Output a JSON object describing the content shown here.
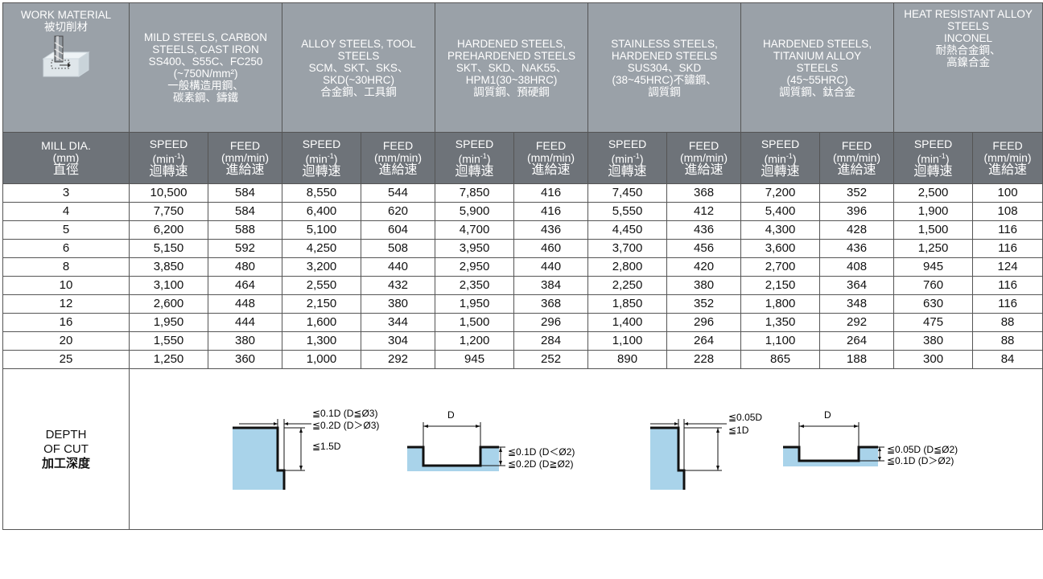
{
  "header": {
    "first_col": {
      "line1": "WORK MATERIAL",
      "line2": "被切削材",
      "icon": "end-mill-cutting-workpiece-icon"
    },
    "materials": [
      {
        "lines": [
          "MILD STEELS, CARBON",
          "STEELS, CAST IRON",
          "SS400、S55C、FC250",
          "(~750N/mm²)",
          "一般構造用鋼、",
          "碳素鋼、鑄鐵"
        ]
      },
      {
        "lines": [
          "ALLOY STEELS, TOOL",
          "STEELS",
          "SCM、SKT、SKS、",
          "SKD(~30HRC)",
          "合金鋼、工具鋼"
        ]
      },
      {
        "lines": [
          "HARDENED STEELS,",
          "PREHARDENED STEELS",
          "SKT、SKD、NAK55、",
          "HPM1(30~38HRC)",
          "調質鋼、預硬鋼"
        ]
      },
      {
        "lines": [
          "STAINLESS STEELS,",
          "HARDENED STEELS",
          "SUS304、SKD",
          "(38~45HRC)不鏽鋼、",
          "調質鋼"
        ]
      },
      {
        "lines": [
          "HARDENED STEELS,",
          "TITANIUM ALLOY",
          "STEELS",
          "(45~55HRC)",
          "調質鋼、鈦合金"
        ]
      },
      {
        "lines": [
          "HEAT RESISTANT ALLOY",
          "STEELS",
          "INCONEL",
          "耐熱合金鋼、",
          "高鎳合金"
        ]
      }
    ]
  },
  "subheader": {
    "mill_dia": {
      "line1": "MILL DIA.",
      "line2": "(mm)",
      "line3": "直徑"
    },
    "speed": {
      "line1": "SPEED",
      "line2_base": "(min",
      "line2_sup": "-1",
      "line2_end": ")",
      "line3": "迴轉速"
    },
    "feed": {
      "line1": "FEED",
      "line2": "(mm/min)",
      "line3": "進給速"
    }
  },
  "rows": [
    [
      "3",
      "10,500",
      "584",
      "8,550",
      "544",
      "7,850",
      "416",
      "7,450",
      "368",
      "7,200",
      "352",
      "2,500",
      "100"
    ],
    [
      "4",
      "7,750",
      "584",
      "6,400",
      "620",
      "5,900",
      "416",
      "5,550",
      "412",
      "5,400",
      "396",
      "1,900",
      "108"
    ],
    [
      "5",
      "6,200",
      "588",
      "5,100",
      "604",
      "4,700",
      "436",
      "4,450",
      "436",
      "4,300",
      "428",
      "1,500",
      "116"
    ],
    [
      "6",
      "5,150",
      "592",
      "4,250",
      "508",
      "3,950",
      "460",
      "3,700",
      "456",
      "3,600",
      "436",
      "1,250",
      "116"
    ],
    [
      "8",
      "3,850",
      "480",
      "3,200",
      "440",
      "2,950",
      "440",
      "2,800",
      "420",
      "2,700",
      "408",
      "945",
      "124"
    ],
    [
      "10",
      "3,100",
      "464",
      "2,550",
      "432",
      "2,350",
      "384",
      "2,250",
      "380",
      "2,150",
      "364",
      "760",
      "116"
    ],
    [
      "12",
      "2,600",
      "448",
      "2,150",
      "380",
      "1,950",
      "368",
      "1,850",
      "352",
      "1,800",
      "348",
      "630",
      "116"
    ],
    [
      "16",
      "1,950",
      "444",
      "1,600",
      "344",
      "1,500",
      "296",
      "1,400",
      "296",
      "1,350",
      "292",
      "475",
      "88"
    ],
    [
      "20",
      "1,550",
      "380",
      "1,300",
      "304",
      "1,200",
      "284",
      "1,100",
      "264",
      "1,100",
      "264",
      "380",
      "88"
    ],
    [
      "25",
      "1,250",
      "360",
      "1,000",
      "292",
      "945",
      "252",
      "890",
      "228",
      "865",
      "188",
      "300",
      "84"
    ]
  ],
  "depth": {
    "label": [
      "DEPTH",
      "OF CUT",
      "加工深度"
    ],
    "diagram1": {
      "radial_1": "≦0.1D (D≦Ø3)",
      "radial_2": "≦0.2D (D＞Ø3)",
      "axial": "≦1.5D"
    },
    "diagram2": {
      "width": "D",
      "depth_1": "≦0.1D (D＜Ø2)",
      "depth_2": "≦0.2D (D≧Ø2)"
    },
    "diagram3": {
      "radial": "≦0.05D",
      "axial": "≦1D"
    },
    "diagram4": {
      "width": "D",
      "depth_1": "≦0.05D (D≦Ø2)",
      "depth_2": "≦0.1D (D＞Ø2)"
    }
  },
  "colors": {
    "header_bg": "#9aa1a8",
    "subheader_bg": "#6e7379",
    "workpiece_fill": "#a9d3ea",
    "border": "#555555"
  }
}
